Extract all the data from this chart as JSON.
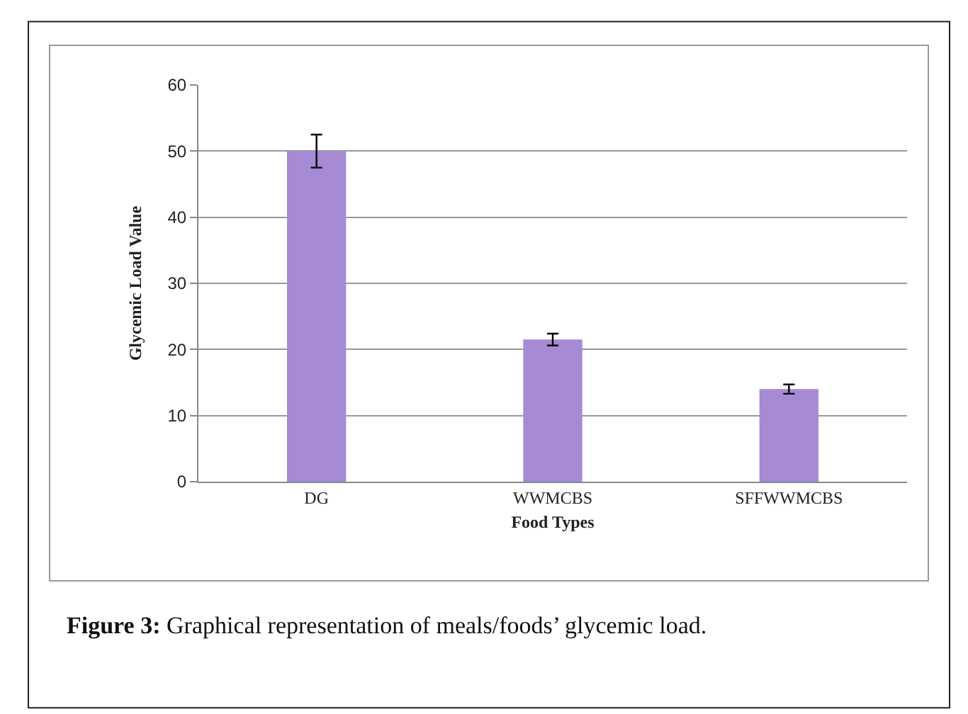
{
  "chart_data": {
    "type": "bar",
    "xlabel": "Food Types",
    "ylabel": "Glycemic Load Value",
    "categories": [
      "DG",
      "WWMCBS",
      "SFFWWMCBS"
    ],
    "values": [
      50,
      21.5,
      14
    ],
    "errors": [
      2.5,
      0.9,
      0.7
    ],
    "color": "#a68ad4",
    "ylim": [
      0,
      60
    ],
    "yticks": [
      0,
      10,
      20,
      30,
      40,
      50,
      60
    ],
    "grid": "y",
    "annotations": [
      "Figure 3: Graphical representation of meals/foods’ glycemic load."
    ]
  }
}
